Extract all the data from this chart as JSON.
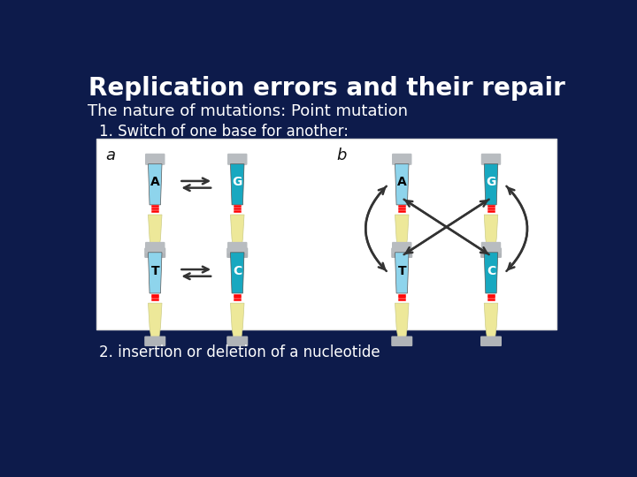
{
  "title": "Replication errors and their repair",
  "subtitle": "The nature of mutations: Point mutation",
  "point1": "1. Switch of one base for another:",
  "point2": "2. insertion or deletion of a nucleotide",
  "bg_color": "#0d1b4b",
  "box_bg": "#ffffff",
  "label_a": "a",
  "label_b": "b",
  "title_fontsize": 20,
  "subtitle_fontsize": 13,
  "point_fontsize": 12,
  "text_color": "#ffffff",
  "box_label_color": "#111111",
  "tube_A_body": "#8ed4ec",
  "tube_G_body": "#18a8c0",
  "tube_cap": "#b8bcc0",
  "tube_base": "#ede899",
  "tube_foot": "#b0b4b8",
  "arrow_color": "#333333"
}
